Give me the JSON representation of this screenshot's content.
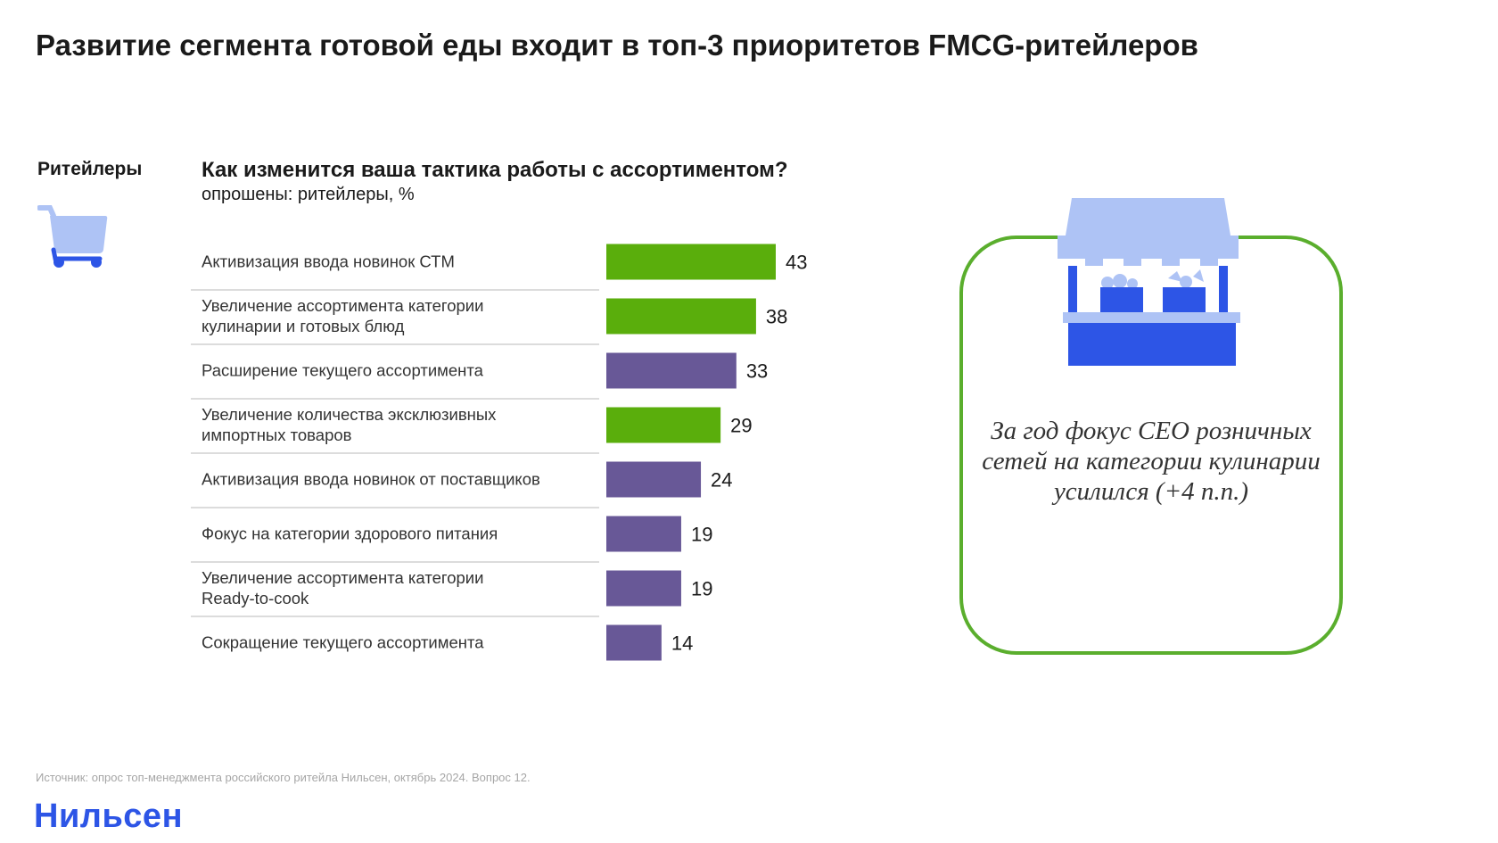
{
  "title": "Развитие сегмента готовой еды входит в топ-3 приоритетов FMCG-ритейлеров",
  "segment": {
    "label": "Ритейлеры",
    "icon": "shopping-cart-icon"
  },
  "callout": {
    "text": "За год фокус CEO розничных сетей на категории кулинарии усилился (+4 п.п.)",
    "icon": "market-stall-icon",
    "border_color": "#5aae2d"
  },
  "source": "Источник: опрос топ-менеджмента российского ритейла Нильсен, октябрь 2024. Вопрос 12.",
  "brand": "Нильсен",
  "colors": {
    "green": "#5aae0c",
    "purple": "#685897",
    "brand_blue": "#2d55e6",
    "light_blue": "#aec3f5"
  },
  "chart_data": {
    "type": "bar",
    "orientation": "horizontal",
    "title": "Как изменится ваша тактика работы с ассортиментом?",
    "subtitle": "опрошены: ритейлеры, %",
    "categories": [
      [
        "Активизация ввода новинок СТМ"
      ],
      [
        "Увеличение ассортимента категории",
        "кулинарии и готовых блюд"
      ],
      [
        "Расширение текущего ассортимента"
      ],
      [
        "Увеличение количества эксклюзивных",
        "импортных товаров"
      ],
      [
        "Активизация ввода новинок от поставщиков"
      ],
      [
        "Фокус на категории здорового питания"
      ],
      [
        "Увеличение ассортимента категории",
        "Ready-to-cook"
      ],
      [
        "Сокращение текущего ассортимента"
      ]
    ],
    "values": [
      43,
      38,
      33,
      29,
      24,
      19,
      19,
      14
    ],
    "bar_colors": [
      "#5aae0c",
      "#5aae0c",
      "#685897",
      "#5aae0c",
      "#685897",
      "#685897",
      "#685897",
      "#685897"
    ],
    "xlim": [
      0,
      43
    ]
  }
}
